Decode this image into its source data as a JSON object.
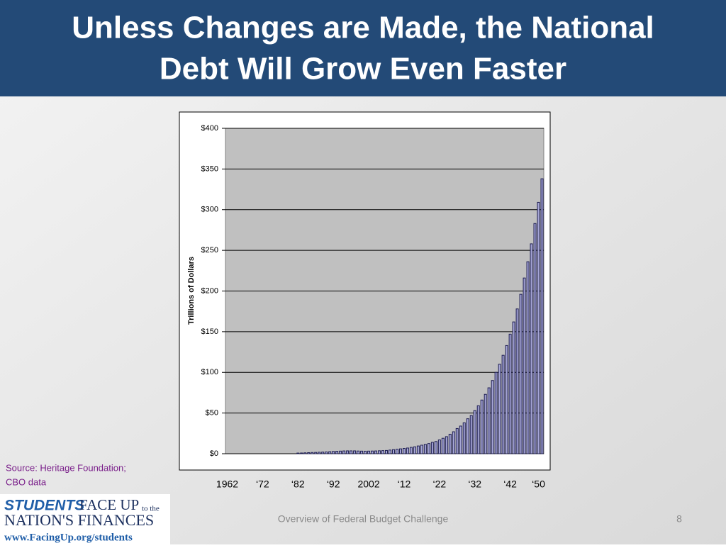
{
  "slide": {
    "title_lines": [
      "Unless Changes are Made, the National",
      "Debt Will Grow Even Faster"
    ],
    "source_lines": [
      "Source:  Heritage Foundation;",
      "CBO data"
    ],
    "logo": {
      "students": "STUDENTS",
      "face_up": "FACE UP",
      "to_the": "to the",
      "nations": "NATION'S FINANCES",
      "url": "www.FacingUp.org/students"
    },
    "footer": "Overview of Federal Budget Challenge",
    "page_number": "8"
  },
  "chart_data": {
    "type": "bar",
    "y_label": "Trillions of Dollars",
    "color": "#a8a8d8",
    "edge_color": "#1c1c50",
    "grid": true,
    "categories": [
      "1962",
      null,
      null,
      null,
      null,
      null,
      null,
      null,
      null,
      null,
      "‘72",
      null,
      null,
      null,
      null,
      null,
      null,
      null,
      null,
      null,
      "‘82",
      null,
      null,
      null,
      null,
      null,
      null,
      null,
      null,
      null,
      "‘92",
      null,
      null,
      null,
      null,
      null,
      null,
      null,
      null,
      null,
      "2002",
      null,
      null,
      null,
      null,
      null,
      null,
      null,
      null,
      null,
      "‘12",
      null,
      null,
      null,
      null,
      null,
      null,
      null,
      null,
      null,
      "‘22",
      null,
      null,
      null,
      null,
      null,
      null,
      null,
      null,
      null,
      "‘32",
      null,
      null,
      null,
      null,
      null,
      null,
      null,
      null,
      null,
      "‘42",
      null,
      null,
      null,
      null,
      null,
      null,
      null,
      "‘50",
      null
    ],
    "values": [
      null,
      null,
      null,
      null,
      null,
      null,
      null,
      null,
      null,
      null,
      null,
      null,
      null,
      null,
      null,
      null,
      null,
      null,
      null,
      null,
      0.8,
      0.9,
      1.1,
      1.3,
      1.5,
      1.6,
      1.8,
      2.0,
      2.2,
      2.5,
      2.8,
      3.0,
      3.2,
      3.4,
      3.5,
      3.5,
      3.5,
      3.3,
      3.2,
      3.1,
      3.2,
      3.3,
      3.4,
      3.6,
      3.8,
      4,
      4.5,
      5,
      5.5,
      6,
      6.5,
      7,
      7.8,
      8.5,
      9.5,
      10.5,
      11.5,
      12.5,
      14,
      15,
      17,
      19,
      21,
      24,
      27,
      31,
      34,
      38,
      43,
      47,
      53,
      59,
      66,
      73,
      81,
      90,
      100,
      110,
      121,
      133,
      147,
      162,
      178,
      196,
      216,
      236,
      258,
      283,
      309,
      338
    ],
    "ylim": [
      0,
      400
    ],
    "yticks": [
      {
        "value": 0,
        "label": "$0"
      },
      {
        "value": 50,
        "label": "$50"
      },
      {
        "value": 100,
        "label": "$100"
      },
      {
        "value": 150,
        "label": "$150"
      },
      {
        "value": 200,
        "label": "$200"
      },
      {
        "value": 250,
        "label": "$250"
      },
      {
        "value": 300,
        "label": "$300"
      },
      {
        "value": 350,
        "label": "$350"
      },
      {
        "value": 400,
        "label": "$400"
      }
    ]
  }
}
